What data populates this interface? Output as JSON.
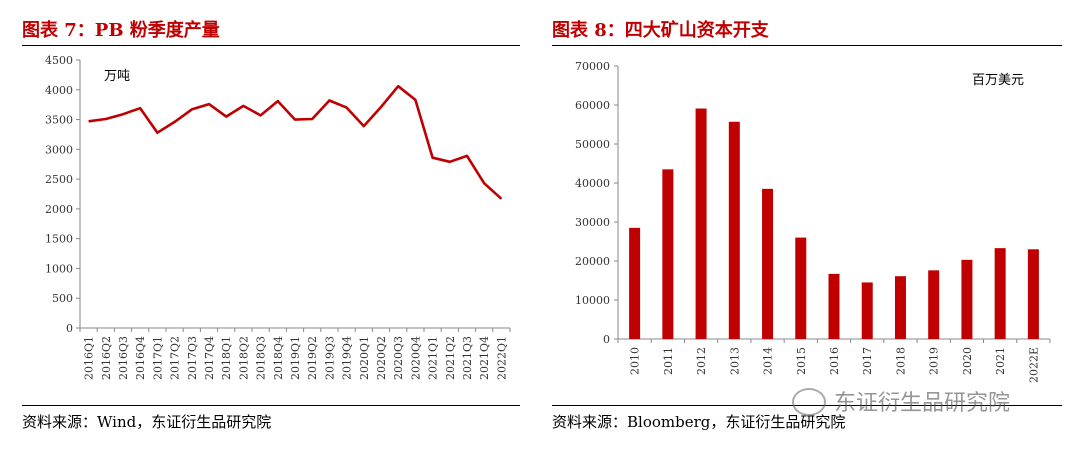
{
  "left": {
    "title": "图表 7：PB 粉季度产量",
    "source": "资料来源：Wind，东证衍生品研究院"
  },
  "right": {
    "title": "图表 8：四大矿山资本开支",
    "source": "资料来源：Bloomberg，东证衍生品研究院"
  },
  "watermark": {
    "text": "东证衍生品研究院",
    "icon": "wechat-icon"
  },
  "colors": {
    "title": "#c00000",
    "series": "#c00000"
  },
  "chart_data": [
    {
      "type": "line",
      "title": "",
      "unit_label": "万吨",
      "x": [
        "2016Q1",
        "2016Q2",
        "2016Q3",
        "2016Q4",
        "2017Q1",
        "2017Q2",
        "2017Q3",
        "2017Q4",
        "2018Q1",
        "2018Q2",
        "2018Q3",
        "2018Q4",
        "2019Q1",
        "2019Q2",
        "2019Q3",
        "2019Q4",
        "2020Q1",
        "2020Q2",
        "2020Q3",
        "2020Q4",
        "2021Q1",
        "2021Q2",
        "2021Q3",
        "2021Q4",
        "2022Q1"
      ],
      "series": [
        {
          "values": [
            3470,
            3510,
            3590,
            3690,
            3280,
            3460,
            3670,
            3760,
            3550,
            3730,
            3570,
            3810,
            3500,
            3510,
            3820,
            3700,
            3390,
            3710,
            4060,
            3830,
            2860,
            2790,
            2890,
            2430,
            2170
          ]
        }
      ],
      "ylim": [
        0,
        4500
      ],
      "yticks": [
        "0",
        "500",
        "1000",
        "1500",
        "2000",
        "2500",
        "3000",
        "3500",
        "4000",
        "4500"
      ],
      "grid": false,
      "legend": "none"
    },
    {
      "type": "bar",
      "title": "",
      "unit_label": "百万美元",
      "categories": [
        "2010",
        "2011",
        "2012",
        "2013",
        "2014",
        "2015",
        "2016",
        "2017",
        "2018",
        "2019",
        "2020",
        "2021",
        "2022E"
      ],
      "values": [
        28500,
        43500,
        59100,
        55700,
        38500,
        26000,
        16700,
        14500,
        16100,
        17600,
        20300,
        23300,
        23000
      ],
      "ylim": [
        0,
        70000
      ],
      "yticks": [
        "0",
        "10000",
        "20000",
        "30000",
        "40000",
        "50000",
        "60000",
        "70000"
      ],
      "grid": false,
      "legend": "none"
    }
  ]
}
